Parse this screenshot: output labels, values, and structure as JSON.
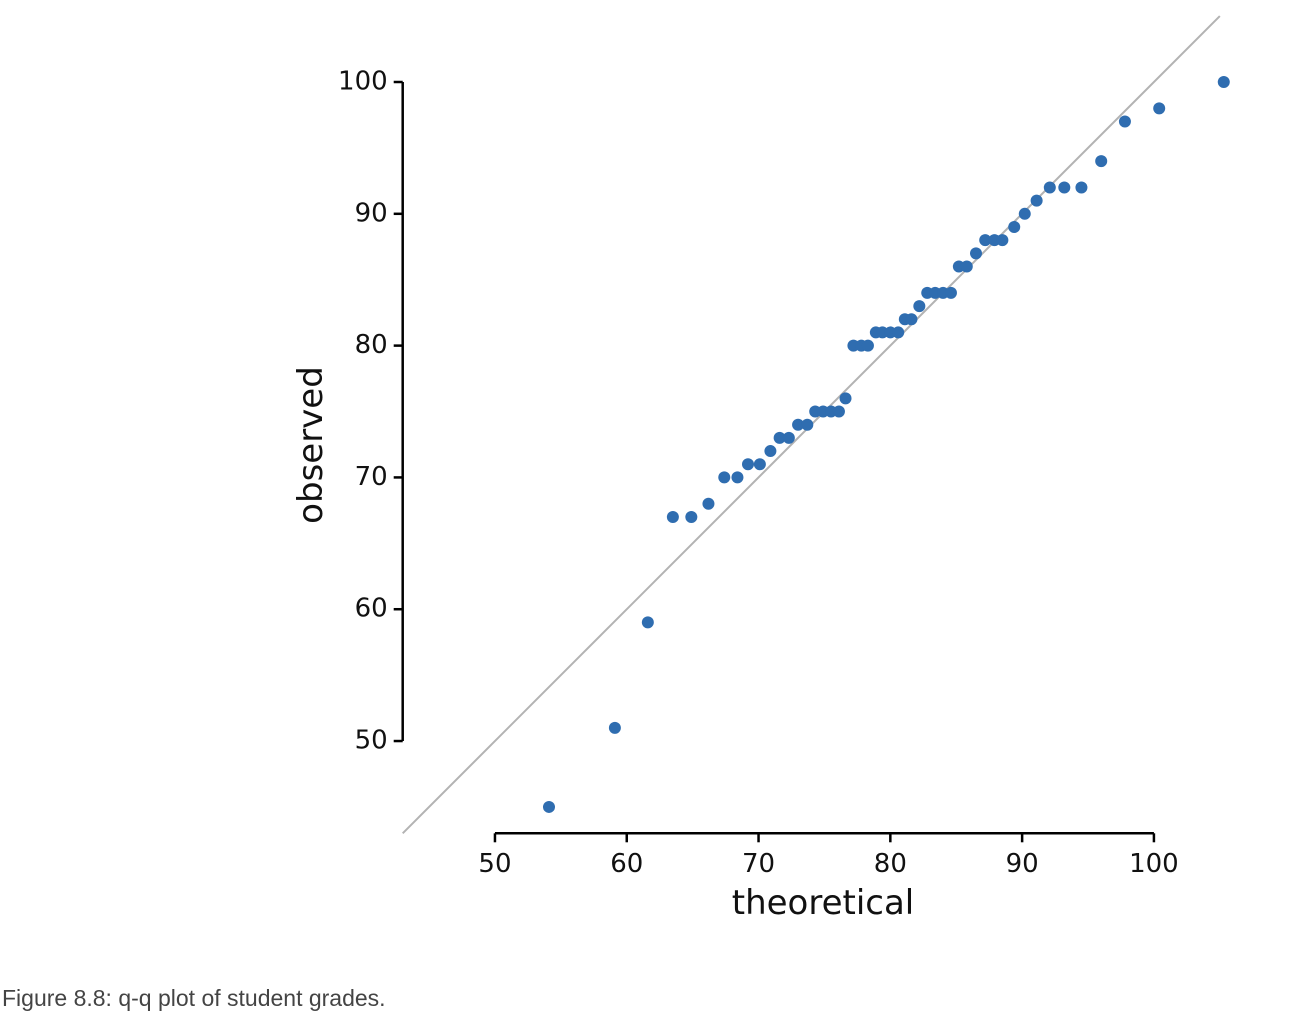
{
  "chart_data": {
    "type": "scatter",
    "x_label": "theoretical",
    "y_label": "observed",
    "caption": "Figure 8.8: q-q plot of student grades.",
    "color": "#2f6db0",
    "x": [
      54.1,
      59.1,
      61.6,
      63.5,
      64.9,
      66.2,
      67.4,
      68.4,
      69.2,
      70.1,
      70.9,
      71.6,
      72.3,
      73.0,
      73.7,
      74.3,
      74.9,
      75.5,
      76.1,
      76.6,
      77.2,
      77.8,
      78.3,
      78.9,
      79.4,
      80.0,
      80.6,
      81.1,
      81.6,
      82.2,
      82.8,
      83.4,
      84.0,
      84.6,
      85.2,
      85.8,
      86.5,
      87.2,
      87.9,
      88.5,
      89.4,
      90.2,
      91.1,
      92.1,
      93.2,
      94.5,
      96.0,
      97.8,
      100.4,
      105.3
    ],
    "values": [
      45,
      51,
      59,
      67,
      67,
      68,
      70,
      70,
      71,
      71,
      72,
      73,
      73,
      74,
      74,
      75,
      75,
      75,
      75,
      76,
      80,
      80,
      80,
      81,
      81,
      81,
      81,
      82,
      82,
      83,
      84,
      84,
      84,
      84,
      86,
      86,
      87,
      88,
      88,
      88,
      89,
      90,
      91,
      92,
      92,
      92,
      94,
      97,
      98,
      100
    ],
    "xlim": [
      43,
      106
    ],
    "ylim": [
      43,
      105
    ],
    "xticks": [
      50,
      60,
      70,
      80,
      90,
      100
    ],
    "yticks": [
      50,
      60,
      70,
      80,
      90,
      100
    ]
  }
}
